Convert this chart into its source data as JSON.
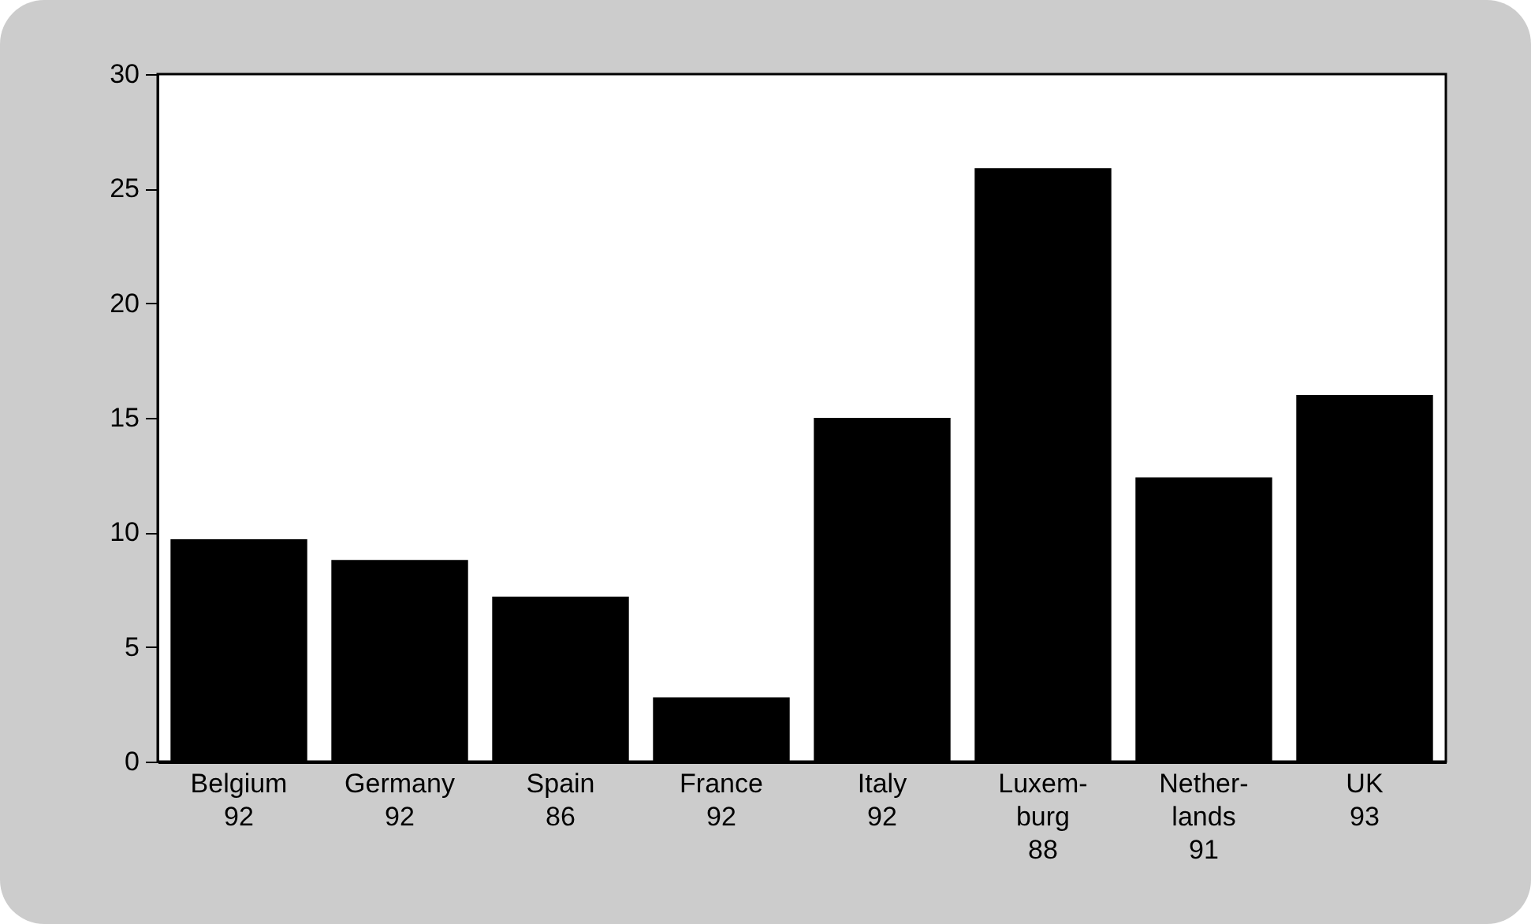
{
  "chart_data": {
    "type": "bar",
    "categories": [
      "Belgium\n92",
      "Germany\n92",
      "Spain\n86",
      "France\n92",
      "Italy\n92",
      "Luxem-\nburg\n88",
      "Nether-\nlands\n91",
      "UK\n93"
    ],
    "values": [
      9.7,
      8.8,
      7.2,
      2.8,
      15.0,
      25.9,
      12.4,
      16.0
    ],
    "color": "#000000",
    "ylim": [
      0,
      30
    ],
    "yticks": [
      0,
      5,
      10,
      15,
      20,
      25,
      30
    ],
    "grid": false
  }
}
